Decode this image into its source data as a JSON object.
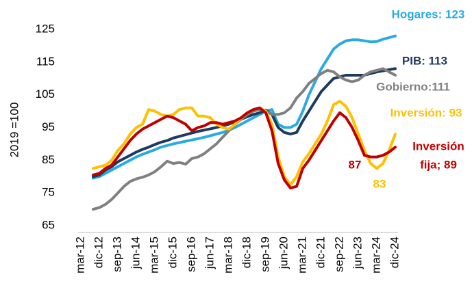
{
  "chart_data": {
    "type": "line",
    "y_label": "2019 =100",
    "categories": [
      "mar-12",
      null,
      null,
      "dic-12",
      null,
      null,
      "sep-13",
      null,
      null,
      "jun-14",
      null,
      null,
      "mar-15",
      null,
      null,
      "dic-15",
      null,
      null,
      "sep-16",
      null,
      null,
      "jun-17",
      null,
      null,
      "mar-18",
      null,
      null,
      "dic-18",
      null,
      null,
      "sep-19",
      null,
      null,
      "jun-20",
      null,
      null,
      "mar-21",
      null,
      null,
      "dic-21",
      null,
      null,
      "sep-22",
      null,
      null,
      "jun-23",
      null,
      null,
      "mar-24",
      null,
      null,
      "dic-24"
    ],
    "ylim": [
      65,
      125
    ],
    "yticks": [
      65,
      75,
      85,
      95,
      105,
      115,
      125
    ],
    "grid": false,
    "series": [
      {
        "name": "Hogares",
        "color": "#29abe2",
        "values": [
          null,
          null,
          79.5,
          80,
          81,
          82,
          83,
          84,
          85,
          86,
          86.8,
          87.5,
          88.2,
          89,
          89.5,
          90,
          90.4,
          90.8,
          91.2,
          91.6,
          92,
          92.5,
          93,
          93.5,
          94.2,
          95,
          96,
          97,
          98,
          99,
          100,
          100.5,
          96,
          95,
          95,
          96,
          100,
          105,
          109,
          113,
          116,
          119,
          120.5,
          121.5,
          121.8,
          121.8,
          121.5,
          121.2,
          121.3,
          122,
          122.5,
          123
        ]
      },
      {
        "name": "PIB",
        "color": "#1f3a5f",
        "values": [
          null,
          null,
          80,
          80.5,
          82,
          83,
          84.5,
          85.5,
          86.5,
          87.5,
          88.3,
          89,
          89.8,
          90.5,
          91,
          91.8,
          92.3,
          92.8,
          93.3,
          93.8,
          94.2,
          94.6,
          95,
          95.5,
          96,
          96.8,
          97.5,
          98.3,
          99,
          99.5,
          100.3,
          99,
          95,
          93.5,
          93,
          93.5,
          97,
          100,
          103,
          106,
          108,
          110,
          110.5,
          111,
          111,
          111,
          111,
          111.5,
          112,
          112.3,
          112.7,
          113
        ]
      },
      {
        "name": "Gobierno",
        "color": "#808080",
        "values": [
          null,
          null,
          70,
          70.5,
          71.5,
          73,
          75,
          77,
          78.5,
          79.3,
          79.8,
          80.5,
          81.5,
          83,
          84.7,
          84,
          84.3,
          83.8,
          85.5,
          86,
          87,
          88.5,
          90,
          92,
          94,
          96,
          97.5,
          99,
          100,
          100.5,
          100,
          99,
          99,
          99.5,
          101,
          104,
          106,
          108.5,
          110,
          111.5,
          112.5,
          112,
          110.5,
          109.5,
          109,
          109.5,
          111,
          112,
          112.5,
          113,
          112,
          111
        ]
      },
      {
        "name": "Inversión",
        "color": "#ffc000",
        "values": [
          null,
          null,
          82.5,
          83,
          83.5,
          85,
          88,
          90,
          93,
          95,
          96,
          100.5,
          100,
          99,
          98.5,
          99,
          100.5,
          101,
          101,
          98.5,
          98.5,
          98,
          96,
          95,
          94.5,
          96,
          98,
          99.5,
          100.5,
          101,
          100,
          96,
          86,
          80,
          77.5,
          80,
          84.5,
          87,
          90,
          93,
          97,
          102,
          103,
          101.5,
          98,
          93,
          88,
          84,
          82.5,
          84,
          88,
          93
        ]
      },
      {
        "name": "Inversión fija",
        "color": "#c00000",
        "values": [
          null,
          null,
          80.5,
          81,
          82.5,
          83.5,
          86,
          88.5,
          91,
          93,
          94.5,
          95.5,
          96.5,
          97.5,
          98.5,
          98,
          97,
          96,
          94,
          95,
          95.5,
          96.5,
          96.5,
          96,
          96.5,
          97,
          98,
          99.5,
          100.5,
          101,
          99.5,
          94,
          84,
          79,
          76.5,
          77,
          82.5,
          85,
          88,
          91,
          94,
          97,
          99.5,
          98,
          95,
          91,
          86.5,
          86,
          86,
          86.5,
          87.5,
          89
        ]
      }
    ],
    "annotations": [
      {
        "lines": [
          "Hogares: 123"
        ],
        "color": "#29abe2"
      },
      {
        "lines": [
          "PIB: 113"
        ],
        "color": "#1f3a5f"
      },
      {
        "lines": [
          "Gobierno:111"
        ],
        "color": "#808080"
      },
      {
        "lines": [
          "Inversión: 93"
        ],
        "color": "#ffc000"
      },
      {
        "lines": [
          "Inversión",
          "fija; 89"
        ],
        "color": "#c00000"
      },
      {
        "lines": [
          "87"
        ],
        "color": "#c00000"
      },
      {
        "lines": [
          "83"
        ],
        "color": "#ffc000"
      }
    ]
  }
}
